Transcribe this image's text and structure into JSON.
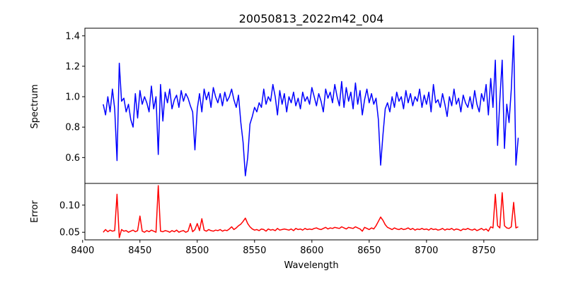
{
  "chart_data": [
    {
      "type": "line",
      "title": "20050813_2022m42_004",
      "xlabel": "",
      "ylabel": "Spectrum",
      "xlim": [
        8402,
        8797
      ],
      "ylim": [
        0.43,
        1.45
      ],
      "yticks": [
        "0.6",
        "0.8",
        "1.0",
        "1.2",
        "1.4"
      ],
      "grid": false,
      "series": [
        {
          "name": "Spectrum",
          "color": "#0000ff",
          "x_start": 8418,
          "x_step": 2,
          "values": [
            0.95,
            0.88,
            1.0,
            0.9,
            1.05,
            0.92,
            0.58,
            1.22,
            0.97,
            0.99,
            0.9,
            0.95,
            0.85,
            0.8,
            1.02,
            0.86,
            1.04,
            0.95,
            1.0,
            0.96,
            0.9,
            1.07,
            0.92,
            1.0,
            0.62,
            1.08,
            0.84,
            1.03,
            0.96,
            1.05,
            0.92,
            0.98,
            1.01,
            0.93,
            1.04,
            0.97,
            1.02,
            0.99,
            0.94,
            0.9,
            0.65,
            0.92,
            1.02,
            0.9,
            1.05,
            0.98,
            1.03,
            0.93,
            1.06,
            1.0,
            0.96,
            1.02,
            0.94,
            1.03,
            0.97,
            1.0,
            1.05,
            0.98,
            0.93,
            1.01,
            0.83,
            0.7,
            0.48,
            0.6,
            0.82,
            0.87,
            0.93,
            0.9,
            0.96,
            0.93,
            1.05,
            0.95,
            1.0,
            0.97,
            1.08,
            1.0,
            0.88,
            1.04,
            0.95,
            1.02,
            0.9,
            1.0,
            0.96,
            1.03,
            0.94,
            0.99,
            0.92,
            1.03,
            0.97,
            1.0,
            0.95,
            1.06,
            1.0,
            0.94,
            1.02,
            0.97,
            0.9,
            1.05,
            0.99,
            1.03,
            0.96,
            1.08,
            1.0,
            0.94,
            1.1,
            0.93,
            1.06,
            0.97,
            1.03,
            0.92,
            1.09,
            0.95,
            1.04,
            0.88,
            0.98,
            1.05,
            0.96,
            1.02,
            0.95,
            0.99,
            0.85,
            0.55,
            0.75,
            0.92,
            0.96,
            0.9,
            1.0,
            0.93,
            1.03,
            0.97,
            1.0,
            0.92,
            1.04,
            0.96,
            1.02,
            0.94,
            1.0,
            0.97,
            1.05,
            0.93,
            1.01,
            0.95,
            1.03,
            0.9,
            1.08,
            0.96,
            0.98,
            0.93,
            1.02,
            0.95,
            0.87,
            1.0,
            0.94,
            1.05,
            0.95,
            0.99,
            0.9,
            1.01,
            0.96,
            0.93,
            1.0,
            0.92,
            1.04,
            0.95,
            0.9,
            1.02,
            0.97,
            1.08,
            0.88,
            1.12,
            0.93,
            1.24,
            0.68,
            0.98,
            1.24,
            0.66,
            0.95,
            0.83,
            1.05,
            1.4,
            0.55,
            0.73
          ]
        }
      ]
    },
    {
      "type": "line",
      "title": "",
      "xlabel": "Wavelength",
      "ylabel": "Error",
      "xlim": [
        8402,
        8797
      ],
      "ylim": [
        0.036,
        0.14
      ],
      "xticks": [
        "8400",
        "8450",
        "8500",
        "8550",
        "8600",
        "8650",
        "8700",
        "8750"
      ],
      "yticks": [
        "0.05",
        "0.10"
      ],
      "grid": false,
      "series": [
        {
          "name": "Error",
          "color": "#ff0000",
          "x_start": 8418,
          "x_step": 2,
          "values": [
            0.05,
            0.055,
            0.051,
            0.054,
            0.052,
            0.053,
            0.12,
            0.04,
            0.055,
            0.052,
            0.053,
            0.05,
            0.052,
            0.054,
            0.051,
            0.053,
            0.08,
            0.052,
            0.05,
            0.053,
            0.051,
            0.054,
            0.052,
            0.05,
            0.136,
            0.052,
            0.051,
            0.053,
            0.052,
            0.05,
            0.053,
            0.051,
            0.054,
            0.05,
            0.052,
            0.053,
            0.05,
            0.052,
            0.066,
            0.051,
            0.055,
            0.066,
            0.053,
            0.075,
            0.054,
            0.052,
            0.055,
            0.053,
            0.052,
            0.054,
            0.053,
            0.055,
            0.052,
            0.054,
            0.053,
            0.056,
            0.06,
            0.055,
            0.058,
            0.062,
            0.065,
            0.07,
            0.076,
            0.066,
            0.06,
            0.056,
            0.054,
            0.055,
            0.053,
            0.056,
            0.055,
            0.052,
            0.056,
            0.054,
            0.055,
            0.053,
            0.057,
            0.054,
            0.055,
            0.056,
            0.055,
            0.054,
            0.056,
            0.053,
            0.057,
            0.055,
            0.056,
            0.054,
            0.057,
            0.055,
            0.056,
            0.055,
            0.057,
            0.058,
            0.056,
            0.055,
            0.057,
            0.059,
            0.056,
            0.058,
            0.057,
            0.059,
            0.058,
            0.057,
            0.06,
            0.058,
            0.056,
            0.059,
            0.058,
            0.057,
            0.06,
            0.058,
            0.056,
            0.052,
            0.059,
            0.057,
            0.055,
            0.058,
            0.056,
            0.062,
            0.07,
            0.078,
            0.072,
            0.064,
            0.059,
            0.057,
            0.055,
            0.058,
            0.056,
            0.055,
            0.057,
            0.055,
            0.056,
            0.058,
            0.055,
            0.057,
            0.054,
            0.056,
            0.055,
            0.057,
            0.055,
            0.056,
            0.054,
            0.057,
            0.055,
            0.056,
            0.054,
            0.055,
            0.057,
            0.054,
            0.056,
            0.055,
            0.057,
            0.054,
            0.056,
            0.055,
            0.053,
            0.056,
            0.055,
            0.057,
            0.055,
            0.054,
            0.056,
            0.053,
            0.055,
            0.057,
            0.054,
            0.056,
            0.052,
            0.06,
            0.058,
            0.12,
            0.062,
            0.058,
            0.123,
            0.062,
            0.058,
            0.057,
            0.06,
            0.105,
            0.058,
            0.06
          ]
        }
      ]
    }
  ]
}
